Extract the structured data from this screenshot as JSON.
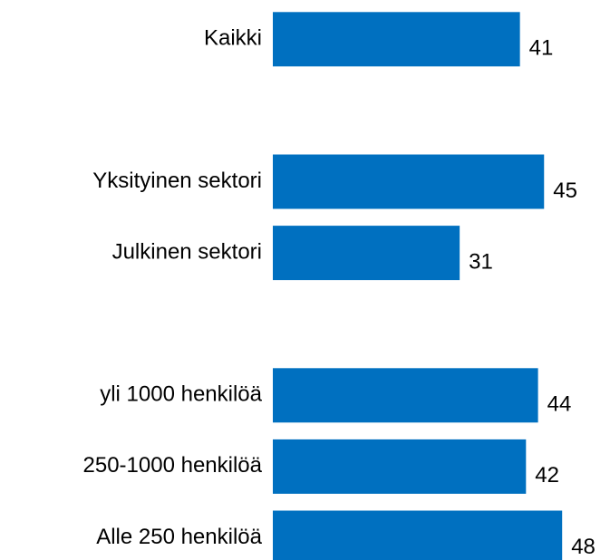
{
  "chart_data": {
    "type": "bar",
    "orientation": "horizontal",
    "categories": [
      "Kaikki",
      null,
      "Yksityinen sektori",
      "Julkinen sektori",
      null,
      "yli 1000 henkilöä",
      "250-1000 henkilöä",
      "Alle 250 henkilöä"
    ],
    "values": [
      41,
      null,
      45,
      31,
      null,
      44,
      42,
      48
    ],
    "color": "#0070c0",
    "xlim": [
      0,
      50
    ]
  }
}
